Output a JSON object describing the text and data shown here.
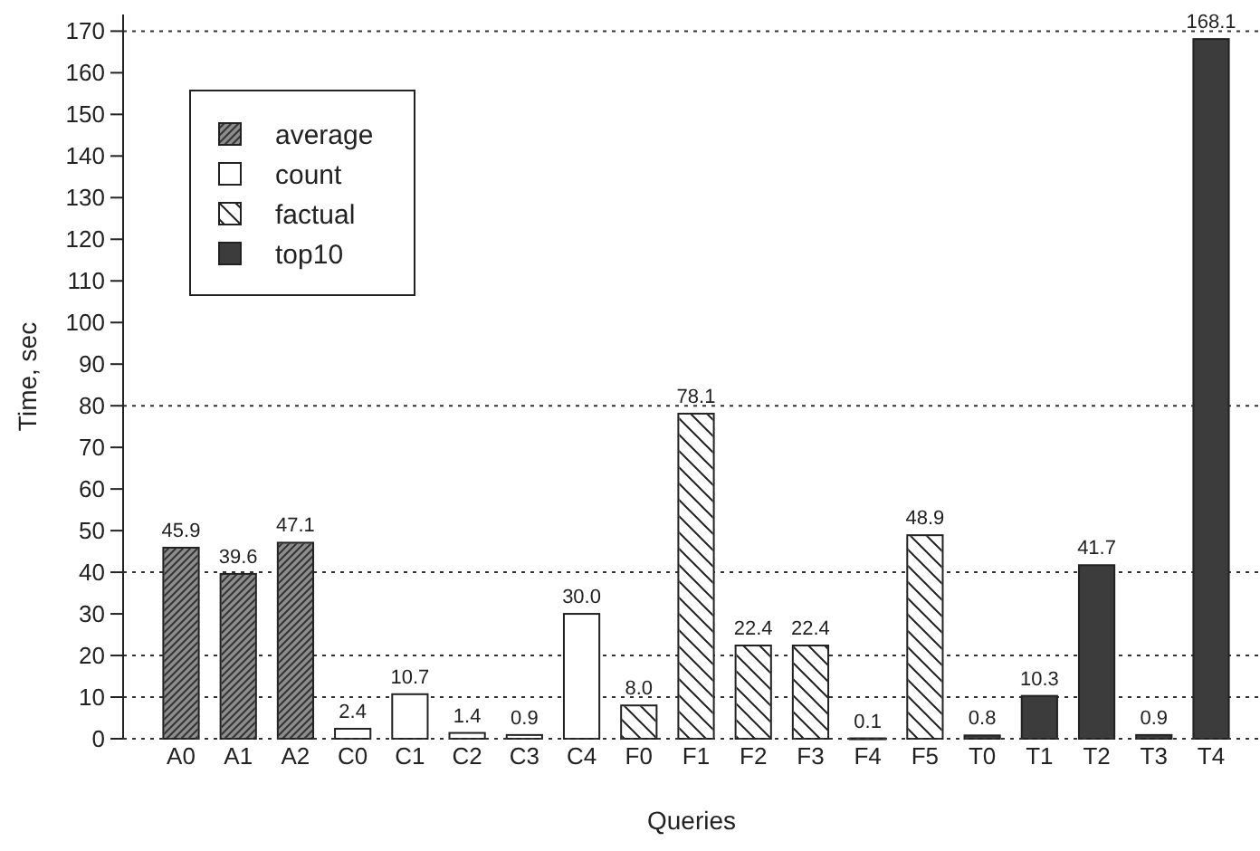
{
  "chart_data": {
    "type": "bar",
    "xlabel": "Queries",
    "ylabel": "Time, sec",
    "categories": [
      "A0",
      "A1",
      "A2",
      "C0",
      "C1",
      "C2",
      "C3",
      "C4",
      "F0",
      "F1",
      "F2",
      "F3",
      "F4",
      "F5",
      "T0",
      "T1",
      "T2",
      "T3",
      "T4"
    ],
    "series": [
      {
        "name": "average",
        "color": "#8c8c8c",
        "values": [
          45.9,
          39.6,
          47.1,
          null,
          null,
          null,
          null,
          null,
          null,
          null,
          null,
          null,
          null,
          null,
          null,
          null,
          null,
          null,
          null
        ],
        "value_labels": [
          "45.9",
          "39.6",
          "47.1",
          null,
          null,
          null,
          null,
          null,
          null,
          null,
          null,
          null,
          null,
          null,
          null,
          null,
          null,
          null,
          null
        ]
      },
      {
        "name": "count",
        "color": "#ffffff",
        "values": [
          null,
          null,
          null,
          2.4,
          10.7,
          1.4,
          0.9,
          30.0,
          null,
          null,
          null,
          null,
          null,
          null,
          null,
          null,
          null,
          null,
          null
        ],
        "value_labels": [
          null,
          null,
          null,
          "2.4",
          "10.7",
          "1.4",
          "0.9",
          "30.0",
          null,
          null,
          null,
          null,
          null,
          null,
          null,
          null,
          null,
          null,
          null
        ]
      },
      {
        "name": "factual",
        "color": "#ffffff",
        "values": [
          null,
          null,
          null,
          null,
          null,
          null,
          null,
          null,
          8.0,
          78.1,
          22.4,
          22.4,
          0.1,
          48.9,
          null,
          null,
          null,
          null,
          null
        ],
        "value_labels": [
          null,
          null,
          null,
          null,
          null,
          null,
          null,
          null,
          "8.0",
          "78.1",
          "22.4",
          "22.4",
          "0.1",
          "48.9",
          null,
          null,
          null,
          null,
          null
        ]
      },
      {
        "name": "top10",
        "color": "#3c3c3c",
        "values": [
          null,
          null,
          null,
          null,
          null,
          null,
          null,
          null,
          null,
          null,
          null,
          null,
          null,
          null,
          0.8,
          10.3,
          41.7,
          0.9,
          168.1
        ],
        "value_labels": [
          null,
          null,
          null,
          null,
          null,
          null,
          null,
          null,
          null,
          null,
          null,
          null,
          null,
          null,
          "0.8",
          "10.3",
          "41.7",
          "0.9",
          "168.1"
        ]
      }
    ],
    "ylim": [
      0,
      174
    ],
    "yticks": [
      0,
      10,
      20,
      30,
      40,
      50,
      60,
      70,
      80,
      90,
      100,
      110,
      120,
      130,
      140,
      150,
      160,
      170
    ],
    "ref_lines": [
      {
        "axis": "y",
        "value": 10
      },
      {
        "axis": "y",
        "value": 20
      },
      {
        "axis": "y",
        "value": 40
      },
      {
        "axis": "y",
        "value": 80
      },
      {
        "axis": "y",
        "value": 170
      }
    ],
    "legend": "top left",
    "grid": false
  }
}
